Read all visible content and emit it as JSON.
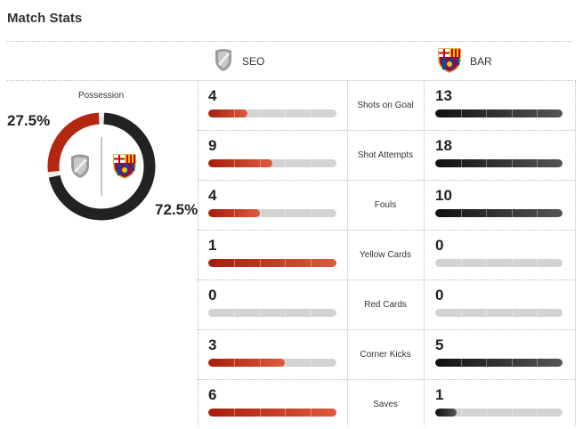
{
  "header": {
    "title": "Match Stats"
  },
  "teams": {
    "home": {
      "abbr": "SEO",
      "color": "#b3260f",
      "crest": "generic-shield-crest"
    },
    "away": {
      "abbr": "BAR",
      "color": "#222222",
      "crest": "fc-barcelona-crest"
    }
  },
  "possession": {
    "label": "Possession",
    "home_pct": "27.5%",
    "away_pct": "72.5%",
    "home_value": 27.5,
    "away_value": 72.5
  },
  "stats": [
    {
      "label": "Shots on Goal",
      "home": "4",
      "away": "13",
      "home_fill": 0.308,
      "away_fill": 1.0
    },
    {
      "label": "Shot Attempts",
      "home": "9",
      "away": "18",
      "home_fill": 0.5,
      "away_fill": 1.0
    },
    {
      "label": "Fouls",
      "home": "4",
      "away": "10",
      "home_fill": 0.4,
      "away_fill": 1.0
    },
    {
      "label": "Yellow Cards",
      "home": "1",
      "away": "0",
      "home_fill": 1.0,
      "away_fill": 0.0
    },
    {
      "label": "Red Cards",
      "home": "0",
      "away": "0",
      "home_fill": 0.0,
      "away_fill": 0.0
    },
    {
      "label": "Corner Kicks",
      "home": "3",
      "away": "5",
      "home_fill": 0.6,
      "away_fill": 1.0
    },
    {
      "label": "Saves",
      "home": "6",
      "away": "1",
      "home_fill": 1.0,
      "away_fill": 0.167
    }
  ]
}
